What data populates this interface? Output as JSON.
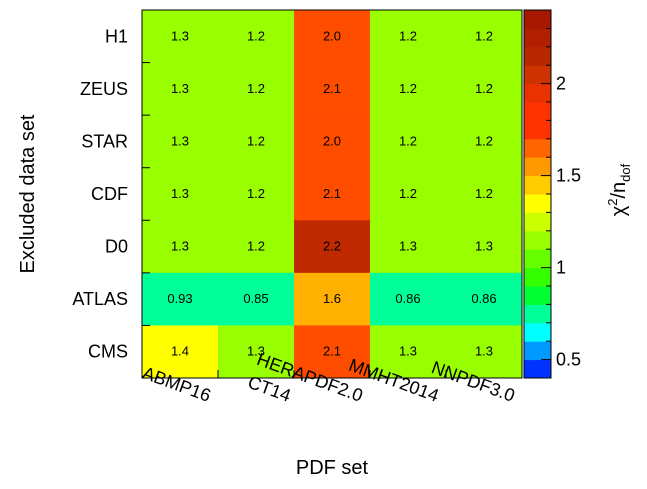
{
  "chart_data": {
    "type": "heatmap",
    "xlabel": "PDF set",
    "ylabel": "Excluded data set",
    "zlabel_main": "χ",
    "zlabel_sup": "2",
    "zlabel_rest": "/n",
    "zlabel_sub": "dof",
    "x_categories": [
      "ABMP16",
      "CT14",
      "HERAPDF2.0",
      "MMHT2014",
      "NNPDF3.0"
    ],
    "y_categories": [
      "H1",
      "ZEUS",
      "STAR",
      "CDF",
      "D0",
      "ATLAS",
      "CMS"
    ],
    "values": [
      [
        1.3,
        1.2,
        2.0,
        1.2,
        1.2
      ],
      [
        1.3,
        1.2,
        2.1,
        1.2,
        1.2
      ],
      [
        1.3,
        1.2,
        2.0,
        1.2,
        1.2
      ],
      [
        1.3,
        1.2,
        2.1,
        1.2,
        1.2
      ],
      [
        1.3,
        1.2,
        2.2,
        1.3,
        1.3
      ],
      [
        0.93,
        0.85,
        1.6,
        0.86,
        0.86
      ],
      [
        1.4,
        1.3,
        2.1,
        1.3,
        1.3
      ]
    ],
    "cell_labels": [
      [
        "1.3",
        "1.2",
        "2.0",
        "1.2",
        "1.2"
      ],
      [
        "1.3",
        "1.2",
        "2.1",
        "1.2",
        "1.2"
      ],
      [
        "1.3",
        "1.2",
        "2.0",
        "1.2",
        "1.2"
      ],
      [
        "1.3",
        "1.2",
        "2.1",
        "1.2",
        "1.2"
      ],
      [
        "1.3",
        "1.2",
        "2.2",
        "1.3",
        "1.3"
      ],
      [
        "0.93",
        "0.85",
        "1.6",
        "0.86",
        "0.86"
      ],
      [
        "1.4",
        "1.3",
        "2.1",
        "1.3",
        "1.3"
      ]
    ],
    "zlim": [
      0.4,
      2.4
    ],
    "z_ticks": [
      {
        "value": 0.5,
        "label": "0.5"
      },
      {
        "value": 1.0,
        "label": "1"
      },
      {
        "value": 1.5,
        "label": "1.5"
      },
      {
        "value": 2.0,
        "label": "2"
      }
    ],
    "palette": [
      "#0033ff",
      "#0099ff",
      "#00ffff",
      "#00ff99",
      "#00ff33",
      "#33ff00",
      "#66ff00",
      "#99ff00",
      "#ccff00",
      "#ffff00",
      "#ffcc00",
      "#ff9900",
      "#ff6600",
      "#ff3300",
      "#ff3300",
      "#e83300",
      "#cc3300",
      "#b82800",
      "#b02000",
      "#a81800"
    ],
    "cell_colors": [
      [
        "#99ff00",
        "#99ff00",
        "#ff4d00",
        "#99ff00",
        "#99ff00"
      ],
      [
        "#99ff00",
        "#99ff00",
        "#ff4d00",
        "#99ff00",
        "#99ff00"
      ],
      [
        "#99ff00",
        "#99ff00",
        "#ff4d00",
        "#99ff00",
        "#99ff00"
      ],
      [
        "#99ff00",
        "#99ff00",
        "#ff4d00",
        "#99ff00",
        "#99ff00"
      ],
      [
        "#99ff00",
        "#99ff00",
        "#c02a00",
        "#99ff00",
        "#99ff00"
      ],
      [
        "#00ff99",
        "#00ff99",
        "#ffb000",
        "#00ff99",
        "#00ff99"
      ],
      [
        "#ffff00",
        "#99ff00",
        "#ff4d00",
        "#99ff00",
        "#99ff00"
      ]
    ]
  }
}
